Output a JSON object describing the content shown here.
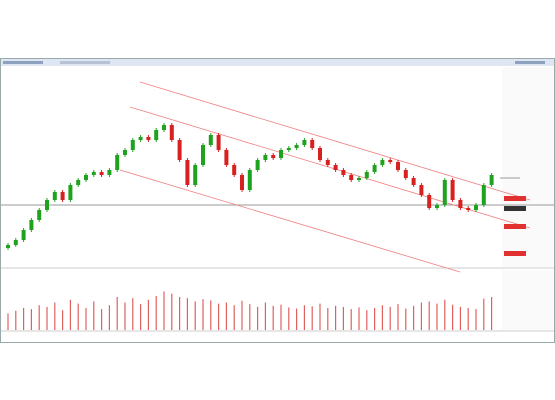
{
  "chart_data": {
    "type": "candlestick",
    "up_color": "#1fa31f",
    "down_color": "#d92020",
    "volume_color": "#e06060",
    "ylim": [
      0,
      100
    ],
    "volume_ylim": [
      0,
      100
    ],
    "open": [
      9,
      10.5,
      13,
      18,
      23,
      28,
      33,
      37,
      33,
      40.5,
      43,
      45.5,
      47,
      45.5,
      48,
      55.5,
      58,
      63,
      64.5,
      63,
      68,
      70.5,
      63,
      53,
      40.5,
      50.5,
      60.5,
      65.5,
      58,
      50.5,
      45.5,
      38,
      48,
      53,
      55.5,
      54,
      58,
      59,
      60.5,
      63,
      59,
      53,
      50.5,
      48,
      45.5,
      43,
      44,
      47,
      50.5,
      53,
      52,
      48,
      44,
      40.5,
      35.5,
      29,
      30.5,
      43,
      33,
      29,
      28,
      30.5,
      40.5
    ],
    "close": [
      10.5,
      13,
      18,
      23,
      28,
      33,
      37,
      33,
      40.5,
      43,
      45.5,
      47,
      45.5,
      48,
      55.5,
      58,
      63,
      64.5,
      63,
      68,
      70.5,
      63,
      53,
      40.5,
      50.5,
      60.5,
      65.5,
      58,
      50.5,
      45.5,
      38,
      48,
      53,
      55.5,
      54,
      58,
      59,
      60.5,
      63,
      59,
      53,
      50.5,
      48,
      45.5,
      43,
      44,
      47,
      50.5,
      53,
      52,
      48,
      44,
      40.5,
      35.5,
      29,
      30.5,
      43,
      33,
      29,
      28,
      30.5,
      40.5,
      45.5
    ],
    "high": [
      11.5,
      14,
      19,
      24,
      29,
      34,
      38,
      38,
      41.5,
      44,
      46.5,
      48,
      48,
      49,
      56.5,
      59,
      64,
      65.5,
      65.5,
      69,
      71.5,
      71.5,
      64,
      54,
      51.5,
      61.5,
      66.5,
      66.5,
      59,
      51.5,
      46.5,
      49,
      54,
      56.5,
      56.5,
      59,
      60,
      61.5,
      64,
      64,
      60,
      54,
      51.5,
      49,
      46.5,
      45,
      48,
      51.5,
      54,
      54,
      53,
      49,
      45,
      41.5,
      36.5,
      31.5,
      44,
      44,
      34,
      30,
      31.5,
      41.5,
      46.5
    ],
    "low": [
      8,
      9.5,
      12,
      17,
      22,
      27,
      32,
      32,
      32,
      39.5,
      42,
      44.5,
      44.5,
      44.5,
      47,
      54.5,
      57,
      62,
      62,
      62,
      67,
      62,
      52,
      39.5,
      39.5,
      49.5,
      59.5,
      57,
      49.5,
      44.5,
      37,
      37,
      47,
      52,
      53,
      53,
      57,
      58,
      59.5,
      58,
      52,
      49.5,
      47,
      44.5,
      42,
      42,
      43,
      46,
      49.5,
      51,
      47,
      43,
      39.5,
      34.5,
      28,
      28,
      29.5,
      32,
      28,
      27,
      27,
      29.5,
      39.5
    ],
    "volume": [
      30,
      35,
      40,
      38,
      45,
      42,
      50,
      36,
      55,
      48,
      40,
      52,
      38,
      45,
      60,
      50,
      58,
      47,
      55,
      62,
      70,
      66,
      60,
      58,
      52,
      56,
      54,
      48,
      50,
      45,
      53,
      47,
      42,
      50,
      44,
      46,
      41,
      39,
      45,
      43,
      48,
      40,
      44,
      42,
      38,
      41,
      36,
      40,
      45,
      42,
      47,
      39,
      44,
      50,
      52,
      48,
      55,
      46,
      42,
      40,
      38,
      57,
      60
    ]
  }
}
